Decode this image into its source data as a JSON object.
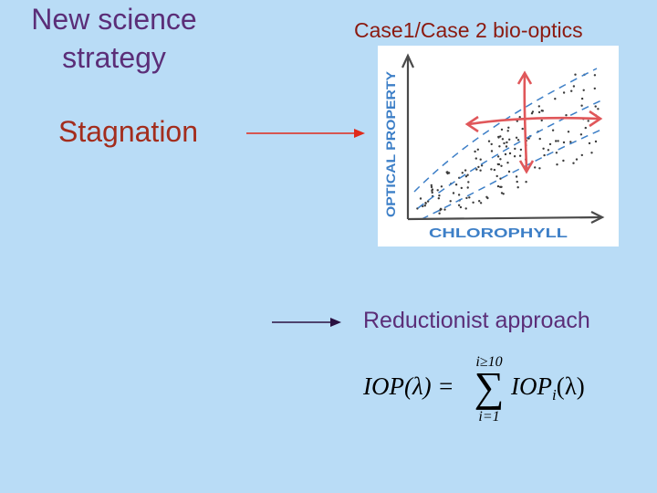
{
  "slide": {
    "case_title": "Case1/Case 2 bio-optics",
    "stagnation_label": "Stagnation",
    "new_science_line1": "New science",
    "new_science_line2": "strategy",
    "reductionist_label": "Reductionist approach"
  },
  "sketch": {
    "x_axis_label": "CHLOROPHYLL",
    "y_axis_label": "OPTICAL PROPERTY"
  },
  "formula": {
    "lhs": "IOP(λ) =",
    "sum_symbol": "∑",
    "upper_limit": "i≥10",
    "lower_limit": "i=1",
    "term": "IOP",
    "term_subscript": "i",
    "term_argument": "(λ)"
  },
  "colors": {
    "background": "#b9dcf6",
    "title_red": "#8b1a10",
    "stagnation_red": "#a32d1d",
    "purple_text": "#5b2e78",
    "arrow_red": "#e02a1a",
    "arrow_purple": "#2a1040",
    "sketch_red": "#e0575a",
    "sketch_blue": "#3d7fc7"
  }
}
